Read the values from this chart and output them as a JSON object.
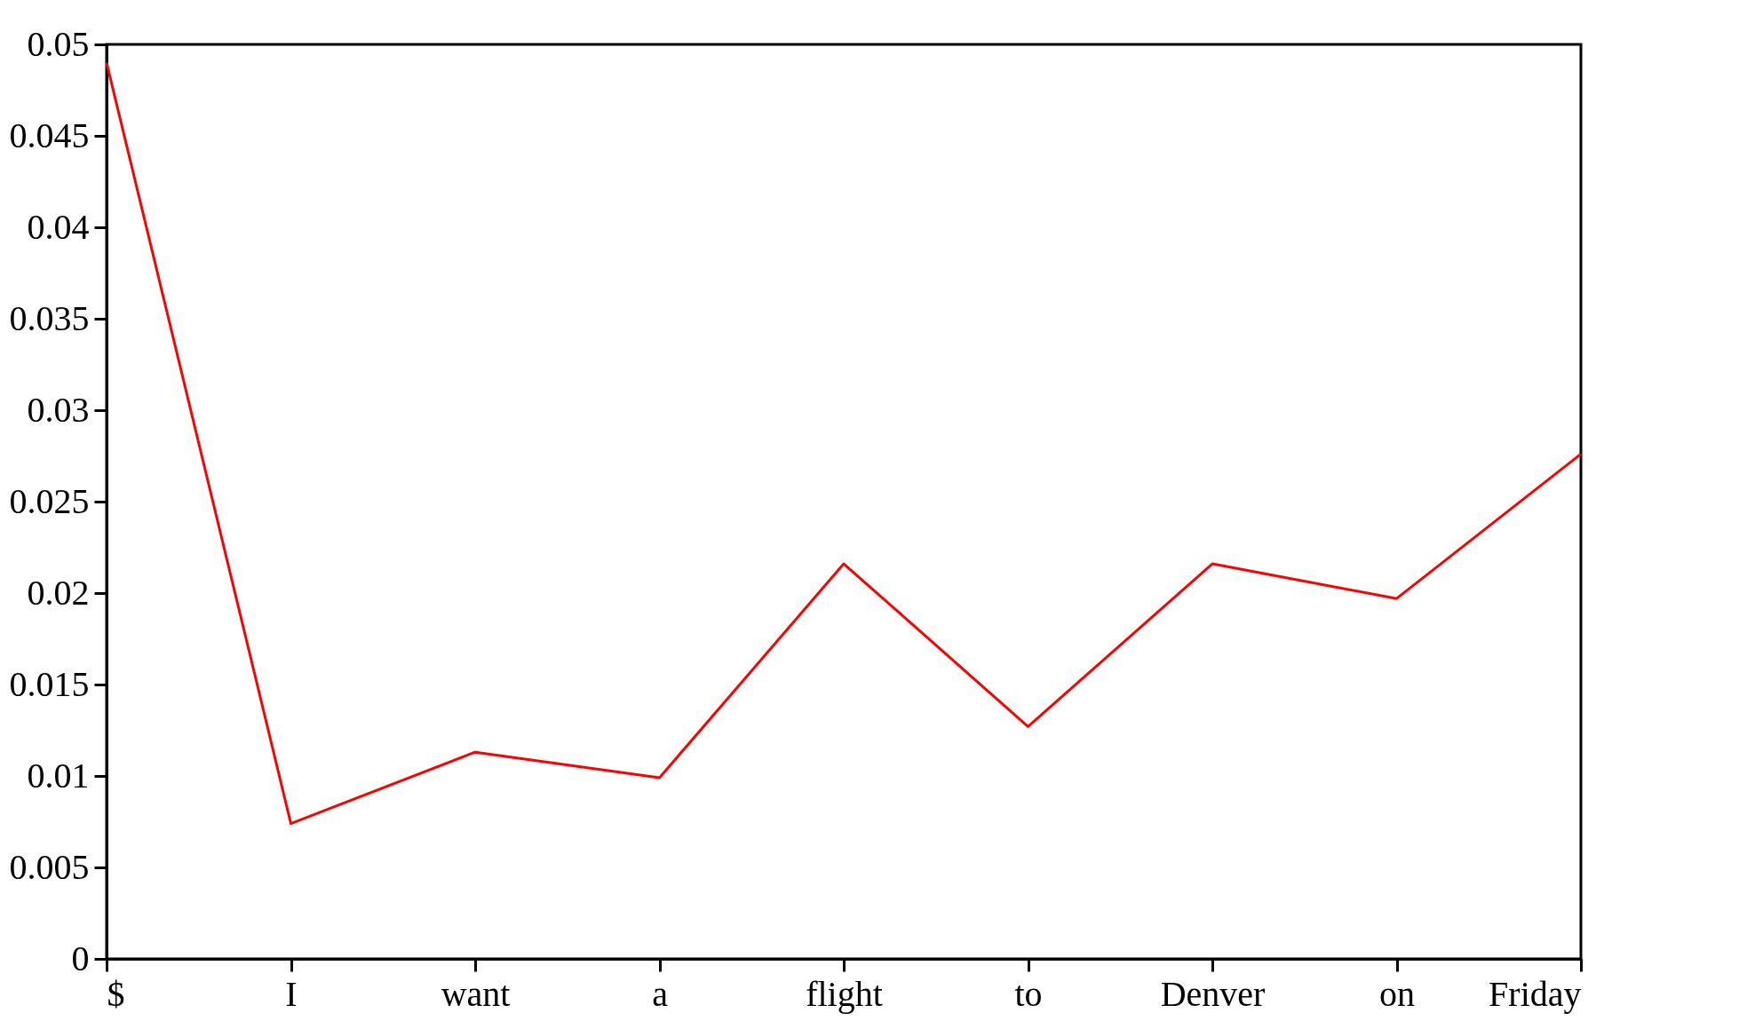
{
  "chart_data": {
    "type": "line",
    "categories": [
      "$",
      "I",
      "want",
      "a",
      "flight",
      "to",
      "Denver",
      "on",
      "Friday"
    ],
    "series": [
      {
        "color": "#ff0000",
        "values": [
          0.049,
          0.0074,
          0.0113,
          0.0099,
          0.0216,
          0.0127,
          0.0216,
          0.0197,
          0.0276
        ]
      }
    ],
    "ylim": [
      0,
      0.05
    ],
    "yticks": [
      0,
      0.005,
      0.01,
      0.015,
      0.02,
      0.025,
      0.03,
      0.035,
      0.04,
      0.045,
      0.05
    ],
    "grid": false,
    "marker": "none",
    "line_style": "solid"
  }
}
